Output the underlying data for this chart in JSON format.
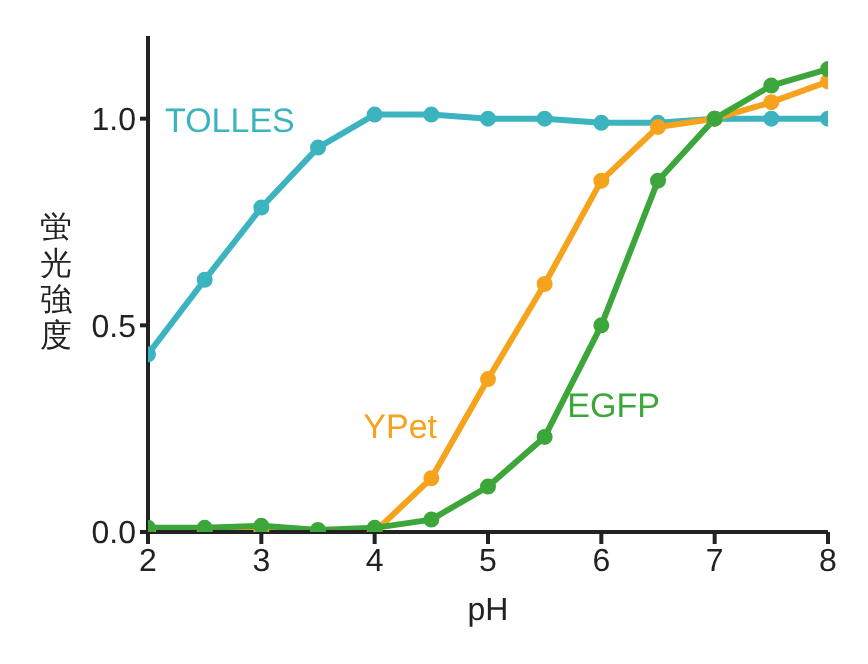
{
  "chart_data": {
    "type": "line",
    "xlabel": "pH",
    "ylabel": "蛍光強度",
    "x": [
      2,
      2.5,
      3,
      3.5,
      4,
      4.5,
      5,
      5.5,
      6,
      6.5,
      7,
      7.5,
      8
    ],
    "series": [
      {
        "name": "TOLLES",
        "color": "#3cb4c0",
        "values": [
          0.43,
          0.61,
          0.785,
          0.93,
          1.01,
          1.01,
          1.0,
          1.0,
          0.99,
          0.99,
          1.0,
          1.0,
          1.0
        ]
      },
      {
        "name": "YPet",
        "color": "#f5a31c",
        "values": [
          0.0,
          0.0,
          0.0,
          0.0,
          0.0,
          0.13,
          0.37,
          0.6,
          0.85,
          0.98,
          1.0,
          1.04,
          1.09
        ]
      },
      {
        "name": "EGFP",
        "color": "#3da63a",
        "values": [
          0.01,
          0.01,
          0.015,
          0.005,
          0.01,
          0.03,
          0.11,
          0.23,
          0.5,
          0.85,
          1.0,
          1.08,
          1.12
        ]
      }
    ],
    "xlim": [
      2,
      8
    ],
    "xticks": [
      2,
      3,
      4,
      5,
      6,
      7,
      8
    ],
    "ylim": [
      0,
      1.2
    ],
    "yticks": [
      {
        "value": 0,
        "label": "0.0"
      },
      {
        "value": 0.5,
        "label": "0.5"
      },
      {
        "value": 1,
        "label": "1.0"
      }
    ],
    "grid": false,
    "legend": false,
    "marker": "circle",
    "line_style": "solid"
  }
}
